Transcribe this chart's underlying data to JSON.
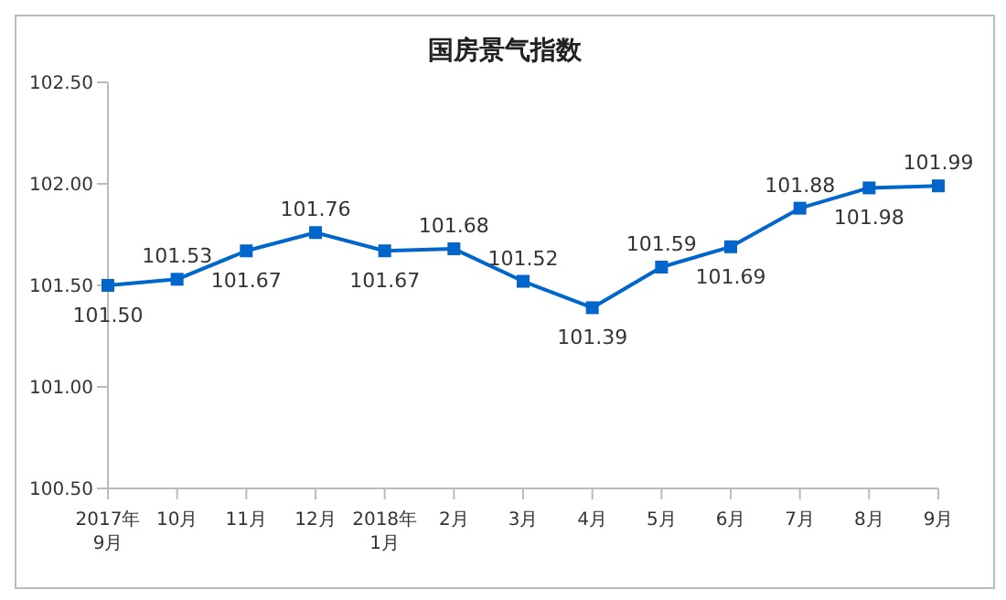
{
  "chart_data": {
    "type": "line",
    "title": "国房景气指数",
    "categories": [
      "2017年\n9月",
      "10月",
      "11月",
      "12月",
      "2018年\n1月",
      "2月",
      "3月",
      "4月",
      "5月",
      "6月",
      "7月",
      "8月",
      "9月"
    ],
    "series": [
      {
        "color": "#0066cc",
        "values": [
          101.5,
          101.53,
          101.67,
          101.76,
          101.67,
          101.68,
          101.52,
          101.39,
          101.59,
          101.69,
          101.88,
          101.98,
          101.99
        ],
        "value_labels": [
          "101.50",
          "101.53",
          "101.67",
          "101.76",
          "101.67",
          "101.68",
          "101.52",
          "101.39",
          "101.59",
          "101.69",
          "101.88",
          "101.98",
          "101.99"
        ]
      }
    ],
    "ylim": [
      100.5,
      102.5
    ],
    "yticks": [
      {
        "value": 100.5,
        "label": "100.50"
      },
      {
        "value": 101,
        "label": "101.00"
      },
      {
        "value": 101.5,
        "label": "101.50"
      },
      {
        "value": 102,
        "label": "102.00"
      },
      {
        "value": 102.5,
        "label": "102.50"
      }
    ],
    "grid": false,
    "legend": false,
    "marker": "square",
    "line_style": "solid"
  }
}
